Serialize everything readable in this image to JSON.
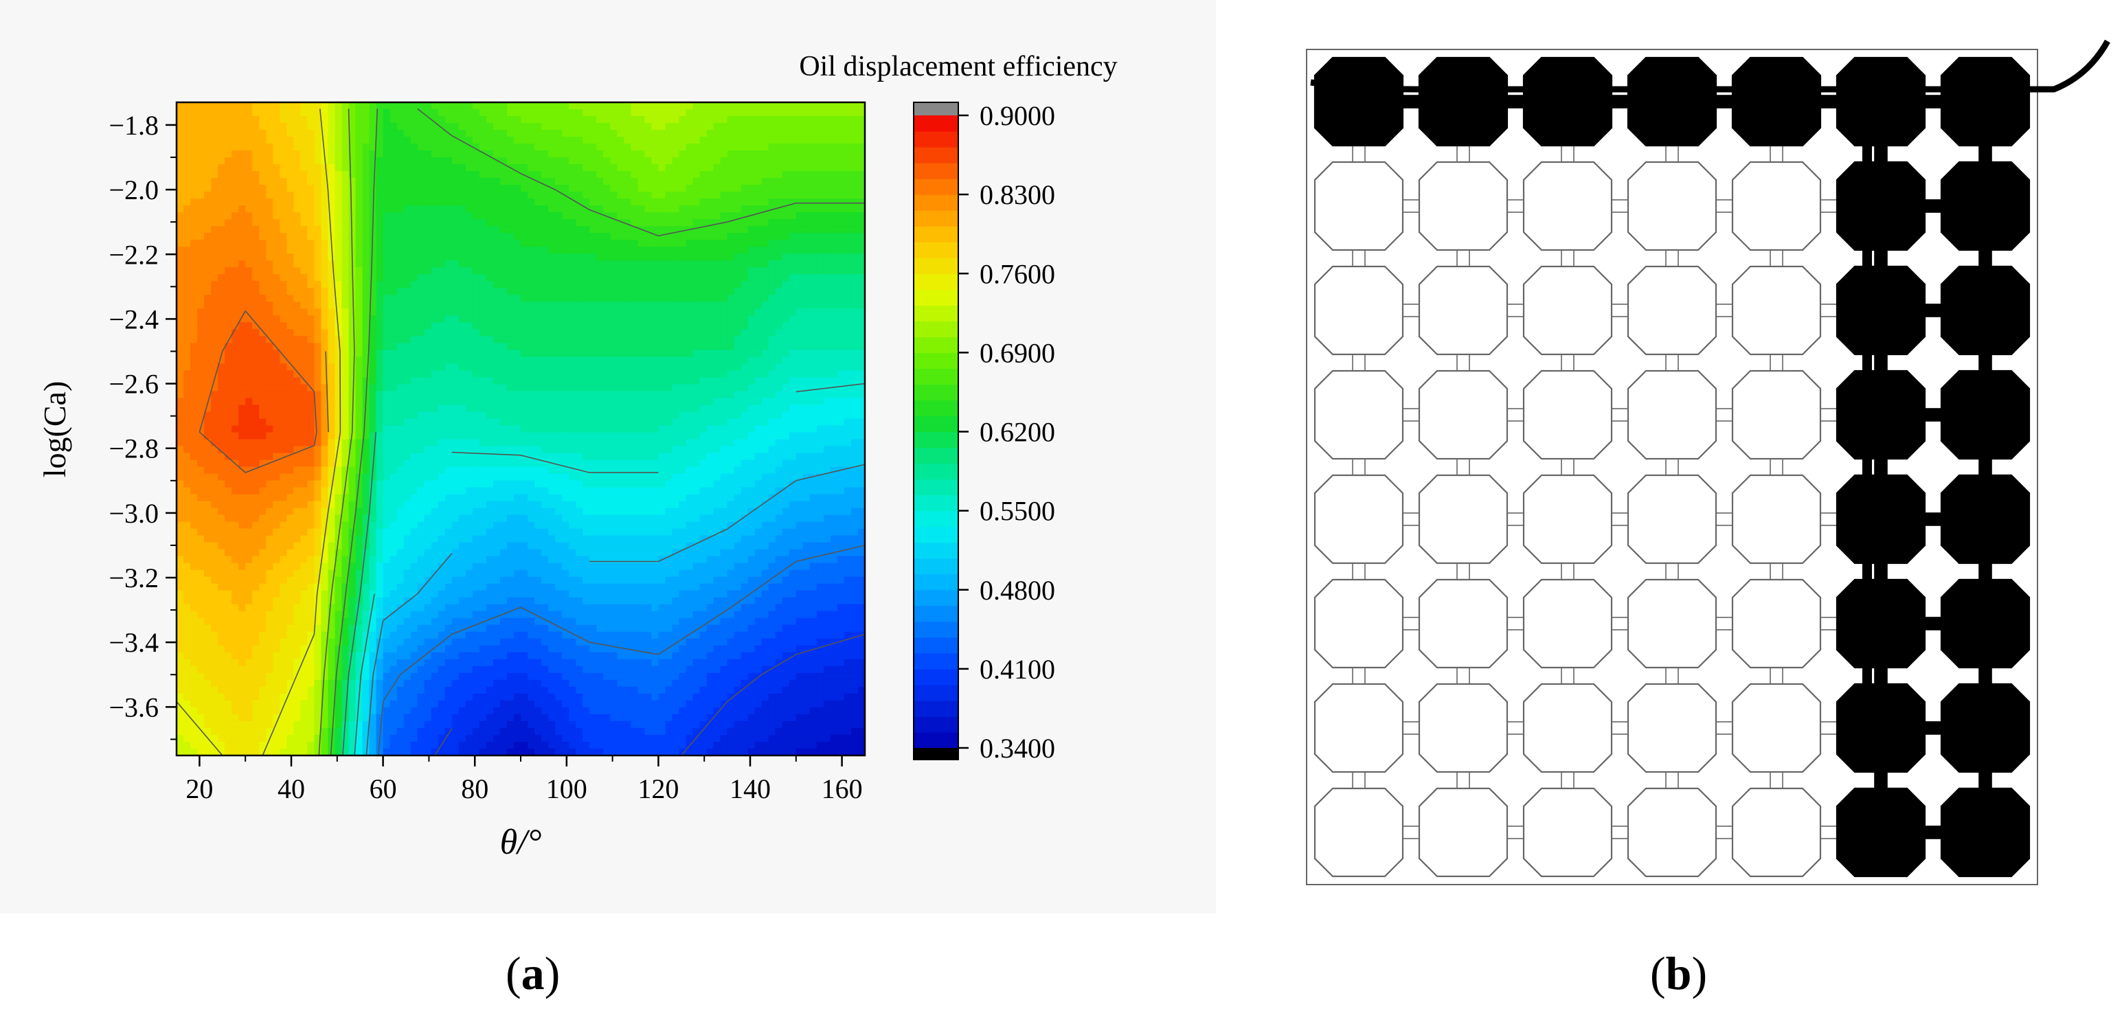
{
  "panel_a_label": "a",
  "panel_b_label": "b",
  "colors": {
    "panel_background": "#f7f7f7",
    "plot_border": "#000000",
    "contour_line": "#555555",
    "pore_fill_oil": "#000000",
    "pore_outline": "#666666"
  },
  "chart_data": [
    {
      "type": "heatmap",
      "subtype": "filled-contour",
      "title": "",
      "xlabel": "θ/°",
      "ylabel": "log(Ca)",
      "xlim": [
        15,
        165
      ],
      "ylim": [
        -3.75,
        -1.73
      ],
      "x_ticks": [
        20,
        40,
        60,
        80,
        100,
        120,
        140,
        160
      ],
      "x_tick_labels": [
        "20",
        "40",
        "60",
        "80",
        "100",
        "120",
        "140",
        "160"
      ],
      "y_ticks": [
        -1.8,
        -2.0,
        -2.2,
        -2.4,
        -2.6,
        -2.8,
        -3.0,
        -3.2,
        -3.4,
        -3.6
      ],
      "y_tick_labels": [
        "−1.8",
        "−2.0",
        "−2.2",
        "−2.4",
        "−2.6",
        "−2.8",
        "−3.0",
        "−3.2",
        "−3.4",
        "−3.6"
      ],
      "x": [
        15,
        30,
        45,
        60,
        75,
        90,
        105,
        120,
        135,
        150,
        165
      ],
      "y": [
        -1.75,
        -2.0,
        -2.25,
        -2.5,
        -2.75,
        -3.0,
        -3.25,
        -3.5,
        -3.75
      ],
      "z": [
        [
          0.8,
          0.8,
          0.76,
          0.64,
          0.66,
          0.69,
          0.7,
          0.72,
          0.7,
          0.7,
          0.7
        ],
        [
          0.8,
          0.82,
          0.78,
          0.63,
          0.63,
          0.64,
          0.66,
          0.69,
          0.67,
          0.66,
          0.66
        ],
        [
          0.83,
          0.84,
          0.8,
          0.62,
          0.61,
          0.62,
          0.62,
          0.62,
          0.62,
          0.6,
          0.6
        ],
        [
          0.83,
          0.86,
          0.84,
          0.6,
          0.59,
          0.6,
          0.6,
          0.6,
          0.6,
          0.57,
          0.57
        ],
        [
          0.84,
          0.87,
          0.86,
          0.57,
          0.56,
          0.57,
          0.57,
          0.57,
          0.55,
          0.53,
          0.52
        ],
        [
          0.81,
          0.83,
          0.8,
          0.55,
          0.52,
          0.5,
          0.53,
          0.53,
          0.51,
          0.48,
          0.47
        ],
        [
          0.78,
          0.8,
          0.76,
          0.52,
          0.48,
          0.46,
          0.48,
          0.48,
          0.46,
          0.43,
          0.42
        ],
        [
          0.76,
          0.78,
          0.74,
          0.46,
          0.42,
          0.4,
          0.43,
          0.44,
          0.41,
          0.39,
          0.38
        ],
        [
          0.73,
          0.76,
          0.72,
          0.43,
          0.39,
          0.35,
          0.4,
          0.41,
          0.38,
          0.36,
          0.35
        ]
      ],
      "contour_levels": [
        0.4,
        0.45,
        0.5,
        0.55,
        0.6,
        0.65,
        0.7,
        0.75,
        0.8,
        0.85
      ],
      "colorbar": {
        "title": "Oil displacement efficiency",
        "min": 0.34,
        "max": 0.9,
        "ticks": [
          0.9,
          0.83,
          0.76,
          0.69,
          0.62,
          0.55,
          0.48,
          0.41,
          0.34
        ],
        "tick_labels": [
          "0.9000",
          "0.8300",
          "0.7600",
          "0.6900",
          "0.6200",
          "0.5500",
          "0.4800",
          "0.4100",
          "0.3400"
        ],
        "over_color": "#888888",
        "under_color": "#000000"
      }
    }
  ],
  "pore_network": {
    "description_hidden": true,
    "rows": 8,
    "cols": 7,
    "filled_pores": [
      [
        0,
        0
      ],
      [
        0,
        1
      ],
      [
        0,
        2
      ],
      [
        0,
        3
      ],
      [
        0,
        4
      ],
      [
        0,
        5
      ],
      [
        0,
        6
      ],
      [
        1,
        5
      ],
      [
        1,
        6
      ],
      [
        2,
        5
      ],
      [
        2,
        6
      ],
      [
        3,
        5
      ],
      [
        3,
        6
      ],
      [
        4,
        5
      ],
      [
        4,
        6
      ],
      [
        5,
        5
      ],
      [
        5,
        6
      ],
      [
        6,
        5
      ],
      [
        6,
        6
      ],
      [
        7,
        5
      ],
      [
        7,
        6
      ]
    ]
  }
}
